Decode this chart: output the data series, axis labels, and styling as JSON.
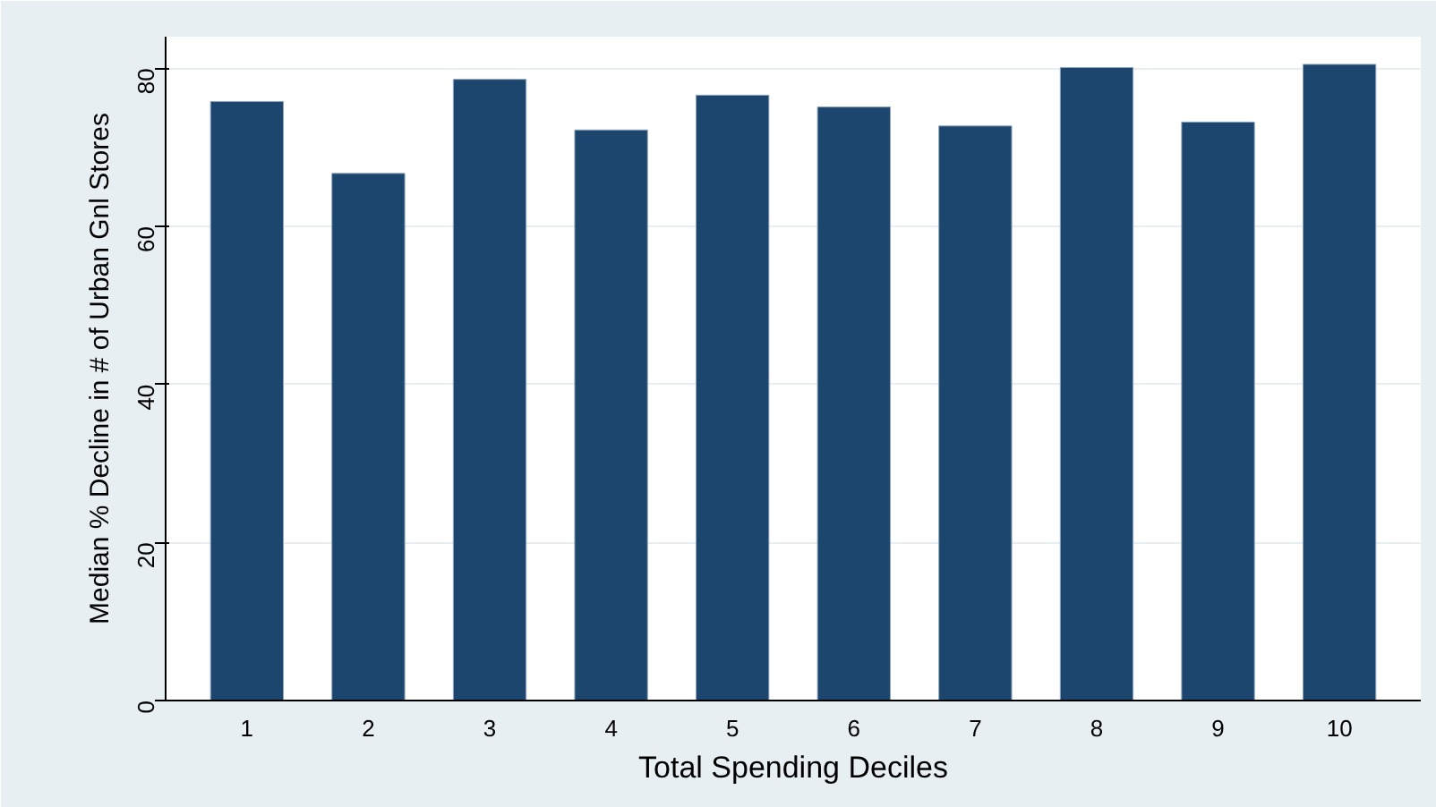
{
  "chart_data": {
    "type": "bar",
    "xlabel": "Total Spending Deciles",
    "ylabel": "Median % Decline in # of Urban Gnl Stores",
    "categories": [
      "1",
      "2",
      "3",
      "4",
      "5",
      "6",
      "7",
      "8",
      "9",
      "10"
    ],
    "values": [
      75.8,
      66.7,
      78.6,
      72.2,
      76.6,
      75.1,
      72.7,
      80.1,
      73.2,
      80.5
    ],
    "color": "#1c466e",
    "ylim": [
      0,
      84
    ],
    "yticks": [
      0,
      20,
      40,
      60,
      80
    ],
    "grid": "y"
  }
}
